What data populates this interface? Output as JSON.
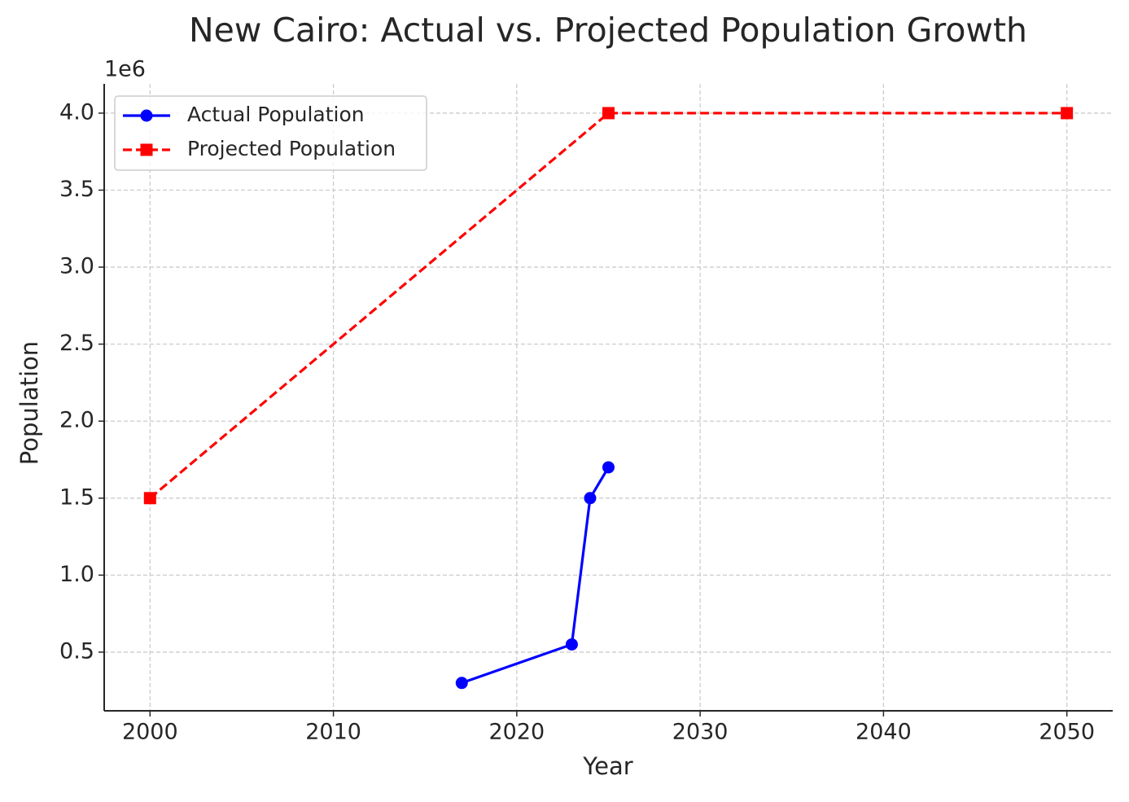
{
  "chart_data": {
    "type": "line",
    "title": "New Cairo: Actual vs. Projected Population Growth",
    "x_label": "Year",
    "y_label": "Population",
    "y_offset_label": "1e6",
    "xlim": [
      1997.5,
      2052.5
    ],
    "xticks": [
      2000,
      2010,
      2020,
      2030,
      2040,
      2050
    ],
    "ylim": [
      119000,
      4190000
    ],
    "yticks": [
      {
        "value": 500000,
        "label": "0.5"
      },
      {
        "value": 1000000,
        "label": "1.0"
      },
      {
        "value": 1500000,
        "label": "1.5"
      },
      {
        "value": 2000000,
        "label": "2.0"
      },
      {
        "value": 2500000,
        "label": "2.5"
      },
      {
        "value": 3000000,
        "label": "3.0"
      },
      {
        "value": 3500000,
        "label": "3.5"
      },
      {
        "value": 4000000,
        "label": "4.0"
      }
    ],
    "grid": true,
    "legend": "upper-left",
    "series": [
      {
        "name": "Actual Population",
        "color": "#0000ff",
        "linestyle": "solid",
        "marker": "circle",
        "x": [
          2017,
          2023,
          2024,
          2025
        ],
        "values": [
          300000,
          550000,
          1500000,
          1700000
        ]
      },
      {
        "name": "Projected Population",
        "color": "#ff0000",
        "linestyle": "dashed",
        "marker": "square",
        "x": [
          2000,
          2025,
          2050
        ],
        "values": [
          1500000,
          4000000,
          4000000
        ]
      }
    ]
  }
}
